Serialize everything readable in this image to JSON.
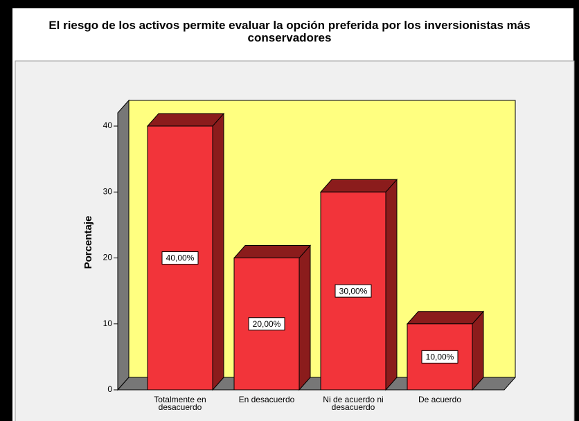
{
  "chart_data": {
    "type": "bar3d",
    "title": "El riesgo de los activos permite evaluar la opción preferida por los inversionistas más conservadores",
    "y_label": "Porcentaje",
    "categories": [
      "Totalmente en desacuerdo",
      "En desacuerdo",
      "Ni de acuerdo ni desacuerdo",
      "De acuerdo"
    ],
    "values": [
      40,
      20,
      30,
      10
    ],
    "value_labels": [
      "40,00%",
      "20,00%",
      "30,00%",
      "10,00%"
    ],
    "color": "#f2343a",
    "ylim": [
      0,
      42
    ],
    "yticks": [
      0,
      10,
      20,
      30,
      40
    ]
  }
}
